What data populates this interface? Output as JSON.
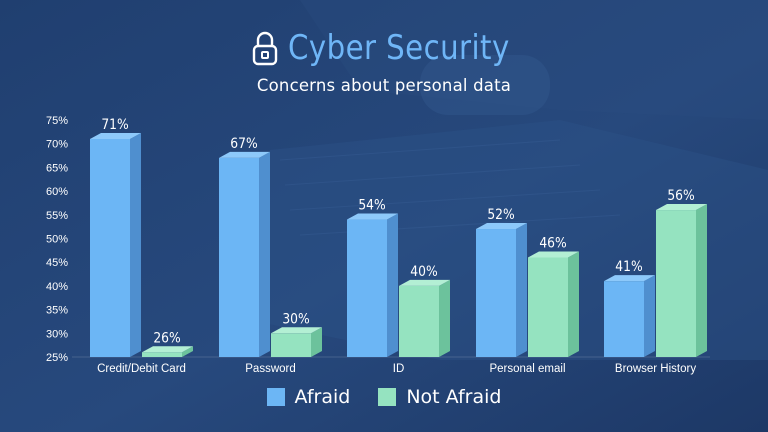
{
  "header": {
    "title": "Cyber Security",
    "subtitle": "Concerns about personal data",
    "icon": "lock-icon"
  },
  "colors": {
    "afraid": "#6cb6f5",
    "not_afraid": "#95e3c0",
    "title": "#6fb6f7",
    "background": "#1f3c6b"
  },
  "legend": {
    "afraid_label": "Afraid",
    "not_afraid_label": "Not Afraid"
  },
  "chart_data": {
    "type": "bar",
    "style": "3d-grouped",
    "categories": [
      "Credit/Debit Card",
      "Password",
      "ID",
      "Personal email",
      "Browser History"
    ],
    "series": [
      {
        "name": "Afraid",
        "values": [
          71,
          67,
          54,
          52,
          41
        ],
        "labels": [
          "71%",
          "67%",
          "54%",
          "52%",
          "41%"
        ]
      },
      {
        "name": "Not Afraid",
        "values": [
          26,
          30,
          40,
          46,
          56
        ],
        "labels": [
          "26%",
          "30%",
          "40%",
          "46%",
          "56%"
        ]
      }
    ],
    "y_ticks": [
      "25%",
      "30%",
      "35%",
      "40%",
      "45%",
      "50%",
      "55%",
      "60%",
      "65%",
      "70%",
      "75%"
    ],
    "ylim": [
      25,
      75
    ],
    "legend_position": "bottom",
    "grid": false
  }
}
